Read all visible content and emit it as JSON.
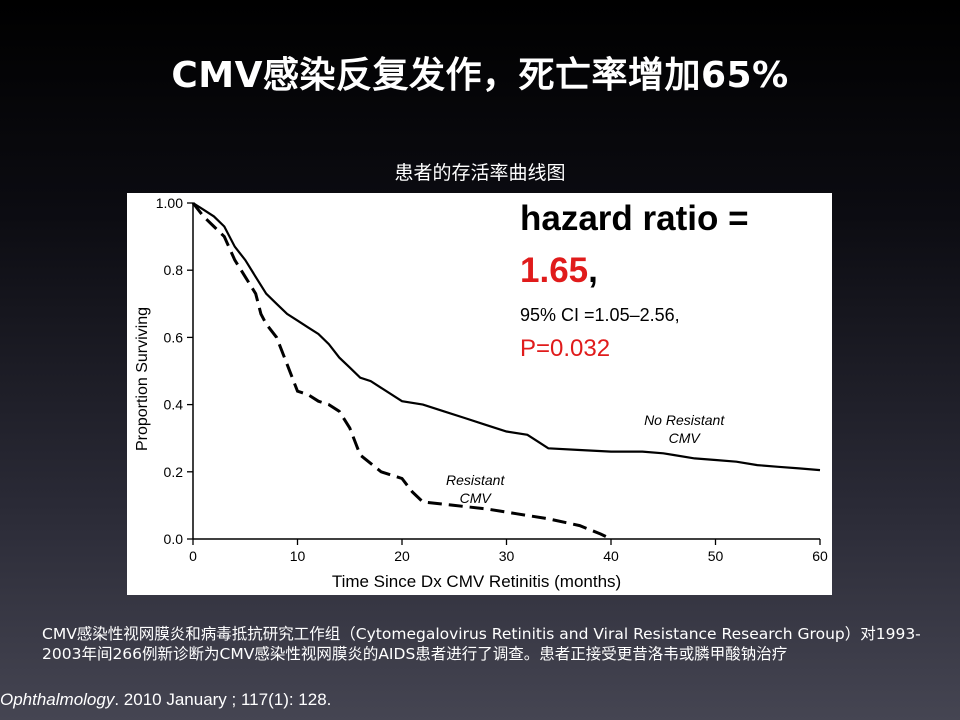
{
  "slide": {
    "title": "CMV感染反复发作，死亡率增加65%",
    "subtitle": "患者的存活率曲线图",
    "footer_text": "CMV感染性视网膜炎和病毒抵抗研究工作组（Cytomegalovirus Retinitis and Viral Resistance Research Group）对1993-2003年间266例新诊断为CMV感染性视网膜炎的AIDS患者进行了调查。患者正接受更昔洛韦或膦甲酸钠治疗",
    "citation_journal": "Ophthalmology",
    "citation_rest": ". 2010 January ; 117(1): 128."
  },
  "annotation": {
    "hr_label": "hazard ratio =",
    "hr_value": "1.65",
    "hr_comma": ",",
    "ci": "95% CI =1.05–2.56,",
    "p": "P=0.032",
    "highlight_color": "#e01b1b"
  },
  "chart_data": {
    "type": "line",
    "xlabel": "Time Since Dx CMV Retinitis (months)",
    "ylabel": "Proportion Surviving",
    "xlim": [
      0,
      60
    ],
    "ylim": [
      0,
      1.0
    ],
    "xticks": [
      0,
      10,
      20,
      30,
      40,
      50,
      60
    ],
    "yticks": [
      0.0,
      0.2,
      0.4,
      0.6,
      0.8,
      1.0
    ],
    "ytick_labels": [
      "0.0",
      "0.2",
      "0.4",
      "0.6",
      "0.8",
      "1.00"
    ],
    "step": true,
    "series": [
      {
        "name": "No Resistant CMV",
        "label_lines": [
          "No Resistant",
          "CMV"
        ],
        "label_at": [
          47,
          0.34
        ],
        "dash": "solid",
        "x": [
          0,
          1,
          2,
          3,
          4,
          5,
          6,
          7,
          8,
          9,
          10,
          11,
          12,
          13,
          14,
          15,
          16,
          17,
          18,
          20,
          22,
          24,
          26,
          28,
          30,
          32,
          33,
          34,
          37,
          40,
          43,
          45,
          46,
          48,
          50,
          52,
          54,
          56,
          58,
          60
        ],
        "y": [
          1.0,
          0.98,
          0.96,
          0.93,
          0.87,
          0.83,
          0.78,
          0.73,
          0.7,
          0.67,
          0.65,
          0.63,
          0.61,
          0.58,
          0.54,
          0.51,
          0.48,
          0.47,
          0.45,
          0.41,
          0.4,
          0.38,
          0.36,
          0.34,
          0.32,
          0.31,
          0.29,
          0.27,
          0.265,
          0.26,
          0.26,
          0.255,
          0.25,
          0.24,
          0.235,
          0.23,
          0.22,
          0.215,
          0.21,
          0.205
        ]
      },
      {
        "name": "Resistant CMV",
        "label_lines": [
          "Resistant",
          "CMV"
        ],
        "label_at": [
          27,
          0.16
        ],
        "dash": "dashed",
        "x": [
          0,
          1,
          2,
          3,
          4,
          5,
          6,
          6.5,
          7,
          8,
          9,
          10,
          11,
          12,
          13,
          14,
          15,
          16,
          18,
          20,
          21,
          22,
          25,
          28,
          31,
          34,
          37,
          39,
          40
        ],
        "y": [
          1.0,
          0.96,
          0.93,
          0.9,
          0.83,
          0.78,
          0.73,
          0.67,
          0.64,
          0.6,
          0.52,
          0.44,
          0.43,
          0.41,
          0.4,
          0.38,
          0.33,
          0.25,
          0.2,
          0.18,
          0.14,
          0.11,
          0.1,
          0.09,
          0.075,
          0.06,
          0.04,
          0.015,
          0.0
        ]
      }
    ]
  }
}
